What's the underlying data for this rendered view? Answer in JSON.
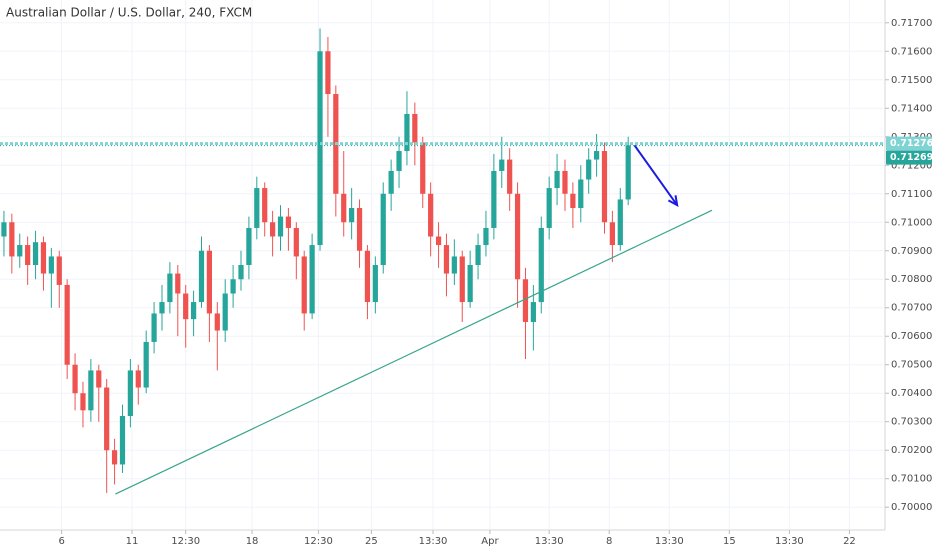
{
  "chart_data": {
    "type": "candlestick",
    "title": "Australian Dollar / U.S. Dollar, 240, FXCM",
    "up_color": "#26a69a",
    "down_color": "#ef5350",
    "grid": true,
    "xlim": [
      0,
      112
    ],
    "ylim": [
      0.6992,
      0.7178
    ],
    "xticks": [
      {
        "value": 7.8,
        "label": "6"
      },
      {
        "value": 16.7,
        "label": "11"
      },
      {
        "value": 23.5,
        "label": "12:30"
      },
      {
        "value": 31.9,
        "label": "18"
      },
      {
        "value": 40.3,
        "label": "12:30"
      },
      {
        "value": 47,
        "label": "25"
      },
      {
        "value": 54.8,
        "label": "13:30"
      },
      {
        "value": 62,
        "label": "Apr"
      },
      {
        "value": 69.5,
        "label": "13:30"
      },
      {
        "value": 77.1,
        "label": "8"
      },
      {
        "value": 84.7,
        "label": "13:30"
      },
      {
        "value": 92.3,
        "label": "15"
      },
      {
        "value": 99.9,
        "label": "13:30"
      },
      {
        "value": 107.5,
        "label": "22"
      }
    ],
    "yticks": [
      {
        "value": 0.7,
        "label": "0.70000"
      },
      {
        "value": 0.701,
        "label": "0.70100"
      },
      {
        "value": 0.702,
        "label": "0.70200"
      },
      {
        "value": 0.703,
        "label": "0.70300"
      },
      {
        "value": 0.704,
        "label": "0.70400"
      },
      {
        "value": 0.705,
        "label": "0.70500"
      },
      {
        "value": 0.706,
        "label": "0.70600"
      },
      {
        "value": 0.707,
        "label": "0.70700"
      },
      {
        "value": 0.708,
        "label": "0.70800"
      },
      {
        "value": 0.709,
        "label": "0.70900"
      },
      {
        "value": 0.71,
        "label": "0.71000"
      },
      {
        "value": 0.711,
        "label": "0.71100"
      },
      {
        "value": 0.712,
        "label": "0.71200"
      },
      {
        "value": 0.713,
        "label": "0.71300"
      },
      {
        "value": 0.714,
        "label": "0.71400"
      },
      {
        "value": 0.715,
        "label": "0.71500"
      },
      {
        "value": 0.716,
        "label": "0.71600"
      },
      {
        "value": 0.717,
        "label": "0.71700"
      }
    ],
    "open": [
      0.7095,
      0.71,
      0.7088,
      0.7092,
      0.7085,
      0.7093,
      0.7082,
      0.7088,
      0.7078,
      0.705,
      0.704,
      0.7034,
      0.7048,
      0.7042,
      0.702,
      0.7015,
      0.7032,
      0.7048,
      0.7042,
      0.7058,
      0.7068,
      0.7072,
      0.7082,
      0.7075,
      0.7066,
      0.7072,
      0.709,
      0.7068,
      0.7062,
      0.7075,
      0.708,
      0.7085,
      0.7098,
      0.7112,
      0.71,
      0.7095,
      0.7102,
      0.7098,
      0.7088,
      0.7068,
      0.7092,
      0.716,
      0.7145,
      0.711,
      0.71,
      0.7105,
      0.709,
      0.7072,
      0.7085,
      0.711,
      0.7118,
      0.7125,
      0.7138,
      0.7128,
      0.711,
      0.7095,
      0.7092,
      0.7082,
      0.7088,
      0.7072,
      0.7085,
      0.7092,
      0.7098,
      0.7118,
      0.7122,
      0.711,
      0.708,
      0.7065,
      0.7072,
      0.7098,
      0.7112,
      0.7118,
      0.711,
      0.7105,
      0.7115,
      0.7122,
      0.7125,
      0.71,
      0.7092,
      0.7108
    ],
    "high": [
      0.7104,
      0.7103,
      0.7096,
      0.7095,
      0.7097,
      0.7095,
      0.7091,
      0.709,
      0.708,
      0.7054,
      0.7044,
      0.7052,
      0.705,
      0.7045,
      0.7024,
      0.7036,
      0.7052,
      0.705,
      0.7062,
      0.7072,
      0.7078,
      0.7086,
      0.7085,
      0.7078,
      0.7076,
      0.7095,
      0.7092,
      0.7072,
      0.708,
      0.7085,
      0.709,
      0.7102,
      0.7116,
      0.7114,
      0.7104,
      0.7106,
      0.7105,
      0.71,
      0.709,
      0.7096,
      0.7168,
      0.7165,
      0.7148,
      0.7125,
      0.7112,
      0.7108,
      0.7092,
      0.7088,
      0.7114,
      0.7122,
      0.713,
      0.7146,
      0.7142,
      0.713,
      0.7114,
      0.71,
      0.7096,
      0.7094,
      0.709,
      0.709,
      0.7096,
      0.7104,
      0.7124,
      0.713,
      0.7126,
      0.7114,
      0.7084,
      0.7078,
      0.7102,
      0.7116,
      0.7124,
      0.7122,
      0.7114,
      0.712,
      0.7126,
      0.7131,
      0.7128,
      0.7104,
      0.7112,
      0.713
    ],
    "low": [
      0.7088,
      0.7082,
      0.7084,
      0.7078,
      0.708,
      0.7076,
      0.707,
      0.707,
      0.7045,
      0.7034,
      0.7028,
      0.703,
      0.703,
      0.7005,
      0.7008,
      0.7012,
      0.7028,
      0.7036,
      0.704,
      0.7054,
      0.7062,
      0.7068,
      0.706,
      0.7056,
      0.706,
      0.707,
      0.7058,
      0.7048,
      0.7058,
      0.707,
      0.7076,
      0.708,
      0.7094,
      0.7095,
      0.7088,
      0.709,
      0.709,
      0.708,
      0.7062,
      0.7066,
      0.709,
      0.713,
      0.7102,
      0.7095,
      0.7094,
      0.7084,
      0.7066,
      0.7068,
      0.7082,
      0.7104,
      0.7112,
      0.712,
      0.712,
      0.7105,
      0.7088,
      0.7084,
      0.7074,
      0.7078,
      0.7065,
      0.707,
      0.708,
      0.7088,
      0.7094,
      0.7112,
      0.7104,
      0.707,
      0.7052,
      0.7055,
      0.7068,
      0.7094,
      0.7106,
      0.7104,
      0.7098,
      0.71,
      0.711,
      0.7116,
      0.7096,
      0.7086,
      0.709,
      0.7106
    ],
    "close": [
      0.71,
      0.7088,
      0.7092,
      0.7085,
      0.7093,
      0.7082,
      0.7088,
      0.7078,
      0.705,
      0.704,
      0.7034,
      0.7048,
      0.7042,
      0.702,
      0.7015,
      0.7032,
      0.7048,
      0.7042,
      0.7058,
      0.7068,
      0.7072,
      0.7082,
      0.7075,
      0.7066,
      0.7072,
      0.709,
      0.7068,
      0.7062,
      0.7075,
      0.708,
      0.7085,
      0.7098,
      0.7112,
      0.71,
      0.7095,
      0.7102,
      0.7098,
      0.7088,
      0.7068,
      0.7092,
      0.716,
      0.7145,
      0.711,
      0.71,
      0.7105,
      0.709,
      0.7072,
      0.7085,
      0.711,
      0.7118,
      0.7125,
      0.7138,
      0.7128,
      0.711,
      0.7095,
      0.7092,
      0.7082,
      0.7088,
      0.7072,
      0.7085,
      0.7092,
      0.7098,
      0.7118,
      0.7122,
      0.711,
      0.708,
      0.7065,
      0.7072,
      0.7098,
      0.7112,
      0.7118,
      0.711,
      0.7105,
      0.7115,
      0.7122,
      0.7125,
      0.71,
      0.7092,
      0.7108,
      0.7127
    ],
    "price_lines": [
      {
        "value": 0.71276,
        "color": "#7fd3d3"
      },
      {
        "value": 0.71269,
        "color": "#26a69a"
      }
    ],
    "trend_line": {
      "x": [
        14.6,
        90.1
      ],
      "y": [
        0.70046,
        0.71042
      ],
      "color": "#3aa58c"
    },
    "arrow": {
      "x": [
        80.3,
        85.7
      ],
      "y": [
        0.7127,
        0.7106
      ],
      "color": "#1c1ce0"
    }
  }
}
